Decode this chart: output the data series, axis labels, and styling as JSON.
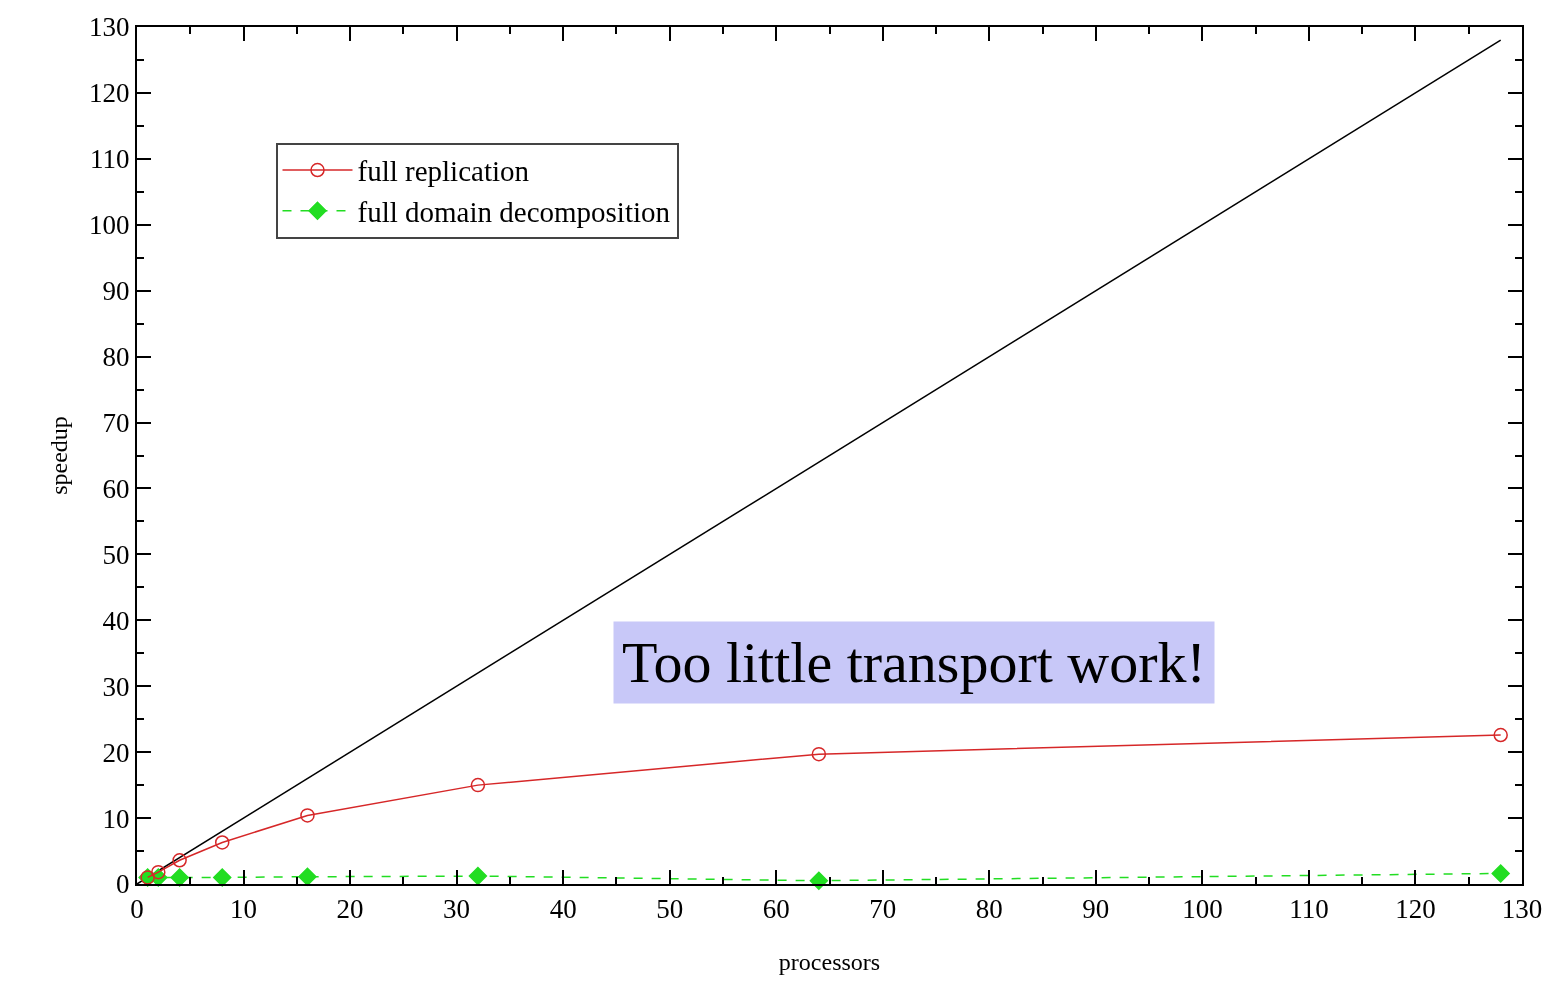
{
  "chart_data": {
    "type": "line",
    "xlabel": "processors",
    "ylabel": "speedup",
    "xlim": [
      0,
      130
    ],
    "ylim": [
      0,
      130
    ],
    "xticks": [
      0,
      10,
      20,
      30,
      40,
      50,
      60,
      70,
      80,
      90,
      100,
      110,
      120,
      130
    ],
    "yticks": [
      0,
      10,
      20,
      30,
      40,
      50,
      60,
      70,
      80,
      90,
      100,
      110,
      120,
      130
    ],
    "legend": "top left",
    "series": [
      {
        "name": "full replication",
        "color": "#d62728",
        "x": [
          1,
          2,
          4,
          8,
          16,
          32,
          64,
          128
        ],
        "values": [
          1.0,
          1.8,
          3.6,
          6.3,
          10.4,
          15.0,
          19.7,
          22.6
        ],
        "marker": "circle",
        "line_style": "solid"
      },
      {
        "name": "full domain decomposition",
        "color": "#22dd22",
        "x": [
          1,
          2,
          4,
          8,
          16,
          32,
          64,
          128
        ],
        "values": [
          1.0,
          1.0,
          1.0,
          1.0,
          1.1,
          1.2,
          0.5,
          1.6
        ],
        "marker": "diamond",
        "line_style": "dashed"
      },
      {
        "color": "#000000",
        "x": [
          0,
          128
        ],
        "values": [
          0,
          128
        ],
        "marker": "none",
        "line_style": "solid"
      }
    ],
    "annotations": [
      "Too little transport work!"
    ]
  }
}
